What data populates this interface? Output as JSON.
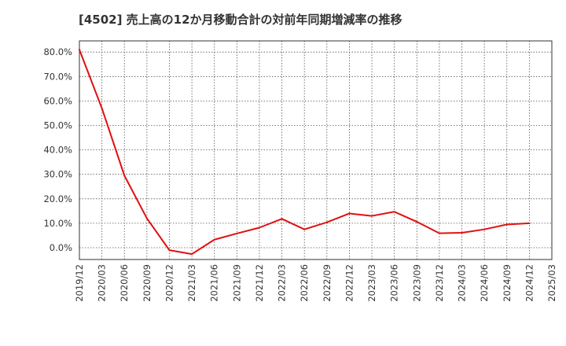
{
  "chart_data": {
    "type": "line",
    "title": "[4502]  売上高の12か月移動合計の対前年同期増減率の推移",
    "xlabel": "",
    "ylabel": "",
    "ylim": [
      -5,
      85
    ],
    "yticks": [
      0,
      10,
      20,
      30,
      40,
      50,
      60,
      70,
      80
    ],
    "ytick_labels": [
      "0.0%",
      "10.0%",
      "20.0%",
      "30.0%",
      "40.0%",
      "50.0%",
      "60.0%",
      "70.0%",
      "80.0%"
    ],
    "x_categories": [
      "2019/12",
      "2020/03",
      "2020/06",
      "2020/09",
      "2020/12",
      "2021/03",
      "2021/06",
      "2021/09",
      "2021/12",
      "2022/03",
      "2022/06",
      "2022/09",
      "2022/12",
      "2023/03",
      "2023/06",
      "2023/09",
      "2023/12",
      "2024/03",
      "2024/06",
      "2024/09",
      "2024/12",
      "2025/03"
    ],
    "grid": true,
    "series": [
      {
        "name": "増減率",
        "color": "#e01010",
        "x_index": [
          0,
          1,
          2,
          3,
          4,
          5,
          6,
          7,
          8,
          9,
          10,
          11,
          12,
          13,
          14,
          15,
          16,
          17,
          18,
          19,
          20
        ],
        "values": [
          81.0,
          57.0,
          29.5,
          12.0,
          -1.0,
          -2.6,
          3.3,
          5.8,
          8.2,
          11.8,
          7.5,
          10.4,
          14.0,
          13.0,
          14.7,
          10.6,
          5.9,
          6.1,
          7.5,
          9.5,
          10.0
        ]
      }
    ]
  }
}
